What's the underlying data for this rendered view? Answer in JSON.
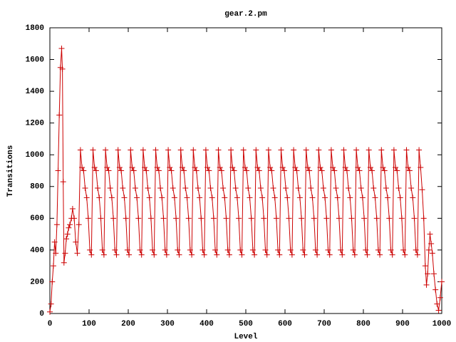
{
  "chart_data": {
    "type": "line",
    "title": "gear.2.pm",
    "x_label": "Level",
    "y_label": "Transitions",
    "xlim": [
      0,
      1000
    ],
    "ylim": [
      0,
      1800
    ],
    "xticks": [
      0,
      100,
      200,
      300,
      400,
      500,
      600,
      700,
      800,
      900,
      1000
    ],
    "yticks": [
      0,
      200,
      400,
      600,
      800,
      1000,
      1200,
      1400,
      1600,
      1800
    ],
    "marker": "+",
    "x": [
      0,
      3,
      6,
      9,
      12,
      15,
      18,
      21,
      24,
      27,
      30,
      32,
      34,
      36,
      39,
      42,
      45,
      48,
      51,
      55,
      58,
      62,
      66,
      70,
      74,
      78,
      82,
      86,
      90,
      94,
      98,
      102,
      106,
      110,
      114,
      118,
      122,
      126,
      130,
      134,
      138,
      142,
      146,
      150,
      154,
      158,
      162,
      166,
      170,
      174,
      178,
      182,
      186,
      190,
      194,
      198,
      202,
      206,
      210,
      214,
      218,
      222,
      226,
      230,
      234,
      238,
      242,
      246,
      250,
      254,
      258,
      262,
      266,
      270,
      274,
      278,
      282,
      286,
      290,
      294,
      298,
      302,
      306,
      310,
      314,
      318,
      322,
      326,
      330,
      334,
      338,
      342,
      346,
      350,
      354,
      358,
      362,
      366,
      370,
      374,
      378,
      382,
      386,
      390,
      394,
      398,
      402,
      406,
      410,
      414,
      418,
      422,
      426,
      430,
      434,
      438,
      442,
      446,
      450,
      454,
      458,
      462,
      466,
      470,
      474,
      478,
      482,
      486,
      490,
      494,
      498,
      502,
      506,
      510,
      514,
      518,
      522,
      526,
      530,
      534,
      538,
      542,
      546,
      550,
      554,
      558,
      562,
      566,
      570,
      574,
      578,
      582,
      586,
      590,
      594,
      598,
      602,
      606,
      610,
      614,
      618,
      622,
      626,
      630,
      634,
      638,
      642,
      646,
      650,
      654,
      658,
      662,
      666,
      670,
      674,
      678,
      682,
      686,
      690,
      694,
      698,
      702,
      706,
      710,
      714,
      718,
      722,
      726,
      730,
      734,
      738,
      742,
      746,
      750,
      754,
      758,
      762,
      766,
      770,
      774,
      778,
      782,
      786,
      790,
      794,
      798,
      802,
      806,
      810,
      814,
      818,
      822,
      826,
      830,
      834,
      838,
      842,
      846,
      850,
      854,
      858,
      862,
      866,
      870,
      874,
      878,
      882,
      886,
      890,
      894,
      898,
      902,
      906,
      910,
      914,
      918,
      922,
      926,
      930,
      934,
      938,
      942,
      946,
      950,
      954,
      958,
      961,
      964,
      967,
      970,
      973,
      976,
      980,
      984,
      988,
      992,
      996,
      1000
    ],
    "series": [
      {
        "name": "gear.2.pm",
        "color": "#cc0000",
        "values": [
          10,
          60,
          200,
          300,
          450,
          380,
          560,
          900,
          1250,
          1550,
          1670,
          1540,
          830,
          320,
          380,
          470,
          500,
          540,
          560,
          600,
          660,
          600,
          450,
          380,
          560,
          1030,
          920,
          900,
          790,
          730,
          600,
          400,
          370,
          1030,
          920,
          900,
          790,
          730,
          600,
          400,
          370,
          1030,
          920,
          900,
          790,
          730,
          600,
          400,
          370,
          1030,
          920,
          900,
          790,
          730,
          600,
          400,
          370,
          1030,
          920,
          900,
          790,
          730,
          600,
          400,
          370,
          1030,
          920,
          900,
          790,
          730,
          600,
          400,
          370,
          1030,
          920,
          900,
          790,
          730,
          600,
          400,
          370,
          1030,
          920,
          900,
          790,
          730,
          600,
          400,
          370,
          1030,
          920,
          900,
          790,
          730,
          600,
          400,
          370,
          1030,
          920,
          900,
          790,
          730,
          600,
          400,
          370,
          1030,
          920,
          900,
          790,
          730,
          600,
          400,
          370,
          1030,
          920,
          900,
          790,
          730,
          600,
          400,
          370,
          1030,
          920,
          900,
          790,
          730,
          600,
          400,
          370,
          1030,
          920,
          900,
          790,
          730,
          600,
          400,
          370,
          1030,
          920,
          900,
          790,
          730,
          600,
          400,
          370,
          1030,
          920,
          900,
          790,
          730,
          600,
          400,
          370,
          1030,
          920,
          900,
          790,
          730,
          600,
          400,
          370,
          1030,
          920,
          900,
          790,
          730,
          600,
          400,
          370,
          1030,
          920,
          900,
          790,
          730,
          600,
          400,
          370,
          1030,
          920,
          900,
          790,
          730,
          600,
          400,
          370,
          1030,
          920,
          900,
          790,
          730,
          600,
          400,
          370,
          1030,
          920,
          900,
          790,
          730,
          600,
          400,
          370,
          1030,
          920,
          900,
          790,
          730,
          600,
          400,
          370,
          1030,
          920,
          900,
          790,
          730,
          600,
          400,
          370,
          1030,
          920,
          900,
          790,
          730,
          600,
          400,
          370,
          1030,
          920,
          900,
          790,
          730,
          600,
          400,
          370,
          1030,
          920,
          900,
          790,
          730,
          600,
          400,
          370,
          1030,
          920,
          780,
          600,
          300,
          180,
          250,
          400,
          500,
          440,
          380,
          250,
          150,
          60,
          20,
          100,
          200
        ]
      }
    ]
  }
}
